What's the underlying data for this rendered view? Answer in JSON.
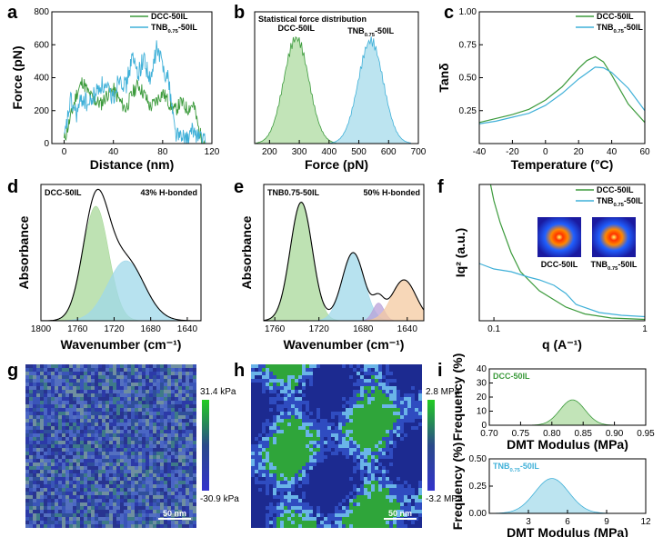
{
  "colors": {
    "green": "#3b9a3b",
    "blue": "#3fb0d8",
    "green_fill": "#a8d89a",
    "blue_fill": "#9fd8ea",
    "purple_fill": "#b8a0d8",
    "orange_fill": "#f4c9a0",
    "dark": "#000000"
  },
  "chart_data": [
    {
      "panel": "a",
      "type": "line",
      "xlabel": "Distance (nm)",
      "ylabel": "Force (pN)",
      "xlim": [
        -10,
        120
      ],
      "ylim": [
        0,
        800
      ],
      "xticks": [
        "0",
        "40",
        "80",
        "120"
      ],
      "yticks": [
        "0",
        "200",
        "400",
        "600",
        "800"
      ],
      "legend": [
        "DCC-50IL",
        "TNB0.75-50IL"
      ],
      "series": [
        {
          "name": "DCC-50IL",
          "color": "green",
          "x": [
            0,
            5,
            10,
            15,
            20,
            25,
            30,
            35,
            40,
            45,
            50,
            55,
            60,
            65,
            70,
            75,
            80,
            85,
            90,
            95,
            100,
            105,
            110,
            115
          ],
          "y": [
            20,
            150,
            300,
            380,
            300,
            260,
            240,
            300,
            330,
            260,
            210,
            300,
            360,
            300,
            220,
            260,
            310,
            250,
            200,
            250,
            210,
            240,
            60,
            0
          ]
        },
        {
          "name": "TNB0.75-50IL",
          "color": "blue",
          "x": [
            0,
            5,
            10,
            15,
            20,
            25,
            30,
            35,
            40,
            45,
            50,
            55,
            60,
            65,
            70,
            75,
            80,
            85,
            90,
            95,
            100,
            105,
            110,
            115
          ],
          "y": [
            10,
            260,
            180,
            280,
            230,
            300,
            360,
            320,
            280,
            420,
            340,
            520,
            430,
            520,
            360,
            580,
            480,
            380,
            80,
            30,
            20,
            80,
            40,
            0
          ]
        }
      ]
    },
    {
      "panel": "b",
      "type": "area",
      "title": "Statistical force distribution",
      "xlabel": "Force (pN)",
      "xlim": [
        150,
        700
      ],
      "xticks": [
        "200",
        "300",
        "400",
        "500",
        "600",
        "700"
      ],
      "series": [
        {
          "name": "DCC-50IL",
          "label": "DCC-50IL",
          "center": 290,
          "sigma": 42,
          "peak": 0.8
        },
        {
          "name": "TNB0.75-50IL",
          "label": "TNB0.75-50IL",
          "center": 540,
          "sigma": 42,
          "peak": 0.78
        }
      ]
    },
    {
      "panel": "c",
      "type": "line",
      "xlabel": "Temperature (°C)",
      "ylabel": "Tanδ",
      "xlim": [
        -40,
        60
      ],
      "ylim": [
        0,
        1.0
      ],
      "xticks": [
        "-40",
        "-20",
        "0",
        "20",
        "40",
        "60"
      ],
      "yticks": [
        "0.25",
        "0.50",
        "0.75",
        "1.00"
      ],
      "legend": [
        "DCC-50IL",
        "TNB0.75-50IL"
      ],
      "series": [
        {
          "name": "DCC-50IL",
          "color": "green",
          "x": [
            -40,
            -30,
            -20,
            -10,
            0,
            10,
            20,
            25,
            30,
            35,
            40,
            50,
            60
          ],
          "y": [
            0.16,
            0.19,
            0.22,
            0.26,
            0.33,
            0.43,
            0.57,
            0.63,
            0.66,
            0.62,
            0.52,
            0.3,
            0.16
          ]
        },
        {
          "name": "TNB0.75-50IL",
          "color": "blue",
          "x": [
            -40,
            -30,
            -20,
            -10,
            0,
            10,
            20,
            30,
            35,
            40,
            50,
            60
          ],
          "y": [
            0.15,
            0.17,
            0.2,
            0.23,
            0.29,
            0.38,
            0.49,
            0.58,
            0.575,
            0.54,
            0.42,
            0.25
          ]
        }
      ]
    },
    {
      "panel": "d",
      "type": "area",
      "title": "DCC-50IL",
      "annotation": "43% H-bonded",
      "xlabel": "Wavenumber (cm⁻¹)",
      "ylabel": "Absorbance",
      "xlim": [
        1800,
        1625
      ],
      "xticks": [
        "1800",
        "1760",
        "1720",
        "1680",
        "1640"
      ],
      "components": [
        {
          "center": 1740,
          "sigma": 14,
          "height": 0.84,
          "fill": "green_fill"
        },
        {
          "center": 1707,
          "sigma": 20,
          "height": 0.44,
          "fill": "blue_fill"
        }
      ]
    },
    {
      "panel": "e",
      "type": "area",
      "title": "TNB0.75-50IL",
      "annotation": "50% H-bonded",
      "xlabel": "Wavenumber (cm⁻¹)",
      "ylabel": "Absorbance",
      "xlim": [
        1770,
        1625
      ],
      "xticks": [
        "1760",
        "1720",
        "1680",
        "1640"
      ],
      "components": [
        {
          "center": 1736,
          "sigma": 10,
          "height": 0.87,
          "fill": "green_fill"
        },
        {
          "center": 1689,
          "sigma": 10,
          "height": 0.5,
          "fill": "blue_fill"
        },
        {
          "center": 1666,
          "sigma": 5,
          "height": 0.13,
          "fill": "purple_fill"
        },
        {
          "center": 1643,
          "sigma": 11,
          "height": 0.3,
          "fill": "orange_fill"
        }
      ]
    },
    {
      "panel": "f",
      "type": "line",
      "xlabel": "q (A⁻¹)",
      "ylabel": "Iq² (a.u.)",
      "xscale": "log",
      "xlim": [
        0.08,
        1.0
      ],
      "xticks": [
        "0.1",
        "1"
      ],
      "legend": [
        "DCC-50IL",
        "TNB0.75-50IL"
      ],
      "inset_labels": [
        "DCC-50IL",
        "TNB0.75-50IL"
      ],
      "series": [
        {
          "name": "DCC-50IL",
          "color": "green",
          "x": [
            0.095,
            0.1,
            0.11,
            0.13,
            0.15,
            0.2,
            0.3,
            0.4,
            0.6,
            1.0
          ],
          "y": [
            1.0,
            0.88,
            0.72,
            0.5,
            0.36,
            0.22,
            0.1,
            0.05,
            0.02,
            0.01
          ]
        },
        {
          "name": "TNB0.75-50IL",
          "color": "blue",
          "x": [
            0.08,
            0.1,
            0.13,
            0.17,
            0.2,
            0.25,
            0.3,
            0.35,
            0.5,
            0.7,
            1.0
          ],
          "y": [
            0.42,
            0.38,
            0.36,
            0.32,
            0.3,
            0.26,
            0.2,
            0.12,
            0.06,
            0.04,
            0.03
          ]
        }
      ]
    },
    {
      "panel": "g",
      "type": "heatmap",
      "colorbar_max": "31.4 kPa",
      "colorbar_min": "-30.9 kPa",
      "scale_bar": "50 nm"
    },
    {
      "panel": "h",
      "type": "heatmap",
      "colorbar_max": "2.8 MPa",
      "colorbar_min": "-3.2 MPa",
      "scale_bar": "50 nm"
    },
    {
      "panel": "i-top",
      "type": "area",
      "legend": "DCC-50IL",
      "xlabel": "DMT Modulus (MPa)",
      "ylabel": "Frequency (%)",
      "xlim": [
        0.7,
        0.95
      ],
      "ylim": [
        0,
        40
      ],
      "xticks": [
        "0.70",
        "0.75",
        "0.80",
        "0.85",
        "0.90",
        "0.95"
      ],
      "yticks": [
        "0",
        "10",
        "20",
        "30",
        "40"
      ],
      "dist": {
        "center": 0.833,
        "sigma": 0.02,
        "peak": 18
      }
    },
    {
      "panel": "i-bottom",
      "type": "area",
      "legend": "TNB0.75-50IL",
      "xlabel": "DMT Modulus (MPa)",
      "ylabel": "Frequency (%)",
      "xlim": [
        0,
        12
      ],
      "ylim": [
        0,
        0.5
      ],
      "xticks": [
        "3",
        "6",
        "9",
        "12"
      ],
      "yticks": [
        "0.00",
        "0.25",
        "0.50"
      ],
      "dist": {
        "center": 4.8,
        "sigma": 1.3,
        "peak": 0.32
      }
    }
  ]
}
